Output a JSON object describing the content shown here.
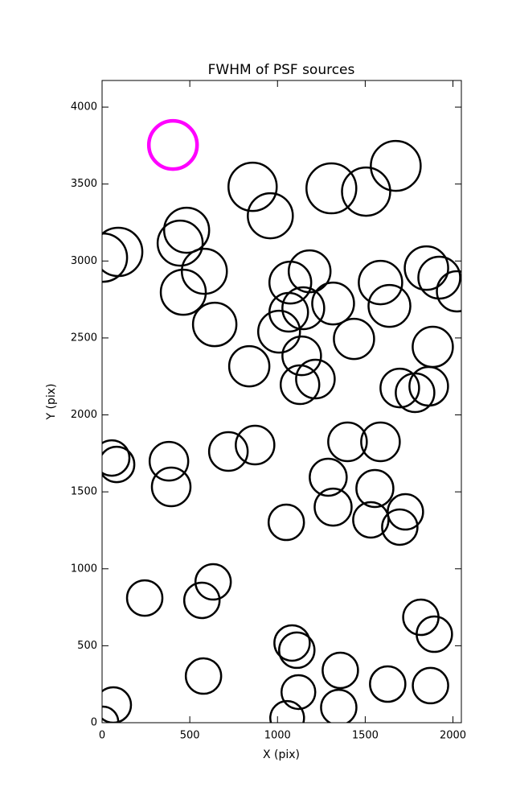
{
  "chart_data": {
    "type": "scatter",
    "title": "FWHM of PSF sources",
    "xlabel": "X (pix)",
    "ylabel": "Y (pix)",
    "xlim": [
      0,
      2048
    ],
    "ylim": [
      0,
      4173
    ],
    "xticks": [
      0,
      500,
      1000,
      1500,
      2000
    ],
    "yticks": [
      0,
      500,
      1000,
      1500,
      2000,
      2500,
      3000,
      3500,
      4000
    ],
    "series": [
      {
        "color": "#000000",
        "x": [
          5,
          92,
          482,
          445,
          583,
          463,
          642,
          858,
          959,
          1307,
          1505,
          1674,
          1073,
          1183,
          1064,
          1147,
          1009,
          1317,
          1436,
          1587,
          1638,
          1849,
          1922,
          2023,
          1885,
          839,
          1138,
          1216,
          1128,
          1697,
          1784,
          1862,
          55,
          83,
          381,
          394,
          720,
          872,
          1399,
          1587,
          1289,
          1317,
          1555,
          1729,
          1532,
          1697,
          1050,
          243,
          633,
          569,
          578,
          64,
          5,
          1083,
          1110,
          1119,
          1055,
          1358,
          1349,
          1628,
          1872,
          1817,
          1894
        ],
        "values": [
          3022,
          3059,
          3200,
          3116,
          2933,
          2797,
          2588,
          3482,
          3294,
          3472,
          3451,
          3618,
          2860,
          2933,
          2667,
          2693,
          2541,
          2724,
          2494,
          2860,
          2708,
          2954,
          2892,
          2803,
          2442,
          2316,
          2384,
          2233,
          2196,
          2175,
          2144,
          2186,
          1720,
          1678,
          1699,
          1532,
          1762,
          1804,
          1825,
          1825,
          1595,
          1401,
          1522,
          1370,
          1318,
          1271,
          1302,
          810,
          915,
          795,
          303,
          115,
          5,
          518,
          471,
          199,
          31,
          340,
          99,
          251,
          241,
          685,
          575
        ],
        "sizes": [
          30,
          30,
          28,
          28,
          28,
          28,
          27,
          30,
          28,
          31,
          30,
          31,
          26,
          26,
          24,
          26,
          26,
          26,
          25,
          27,
          26,
          27,
          26,
          25,
          25,
          25,
          24,
          24,
          24,
          24,
          24,
          24,
          22,
          22,
          24,
          24,
          24,
          24,
          24,
          24,
          23,
          23,
          23,
          22,
          22,
          22,
          22,
          22,
          22,
          22,
          22,
          22,
          19,
          22,
          22,
          21,
          21,
          22,
          22,
          22,
          22,
          22,
          22
        ]
      },
      {
        "color": "#ff00ff",
        "x": [
          404
        ],
        "values": [
          3754
        ],
        "sizes": [
          30
        ]
      }
    ]
  }
}
